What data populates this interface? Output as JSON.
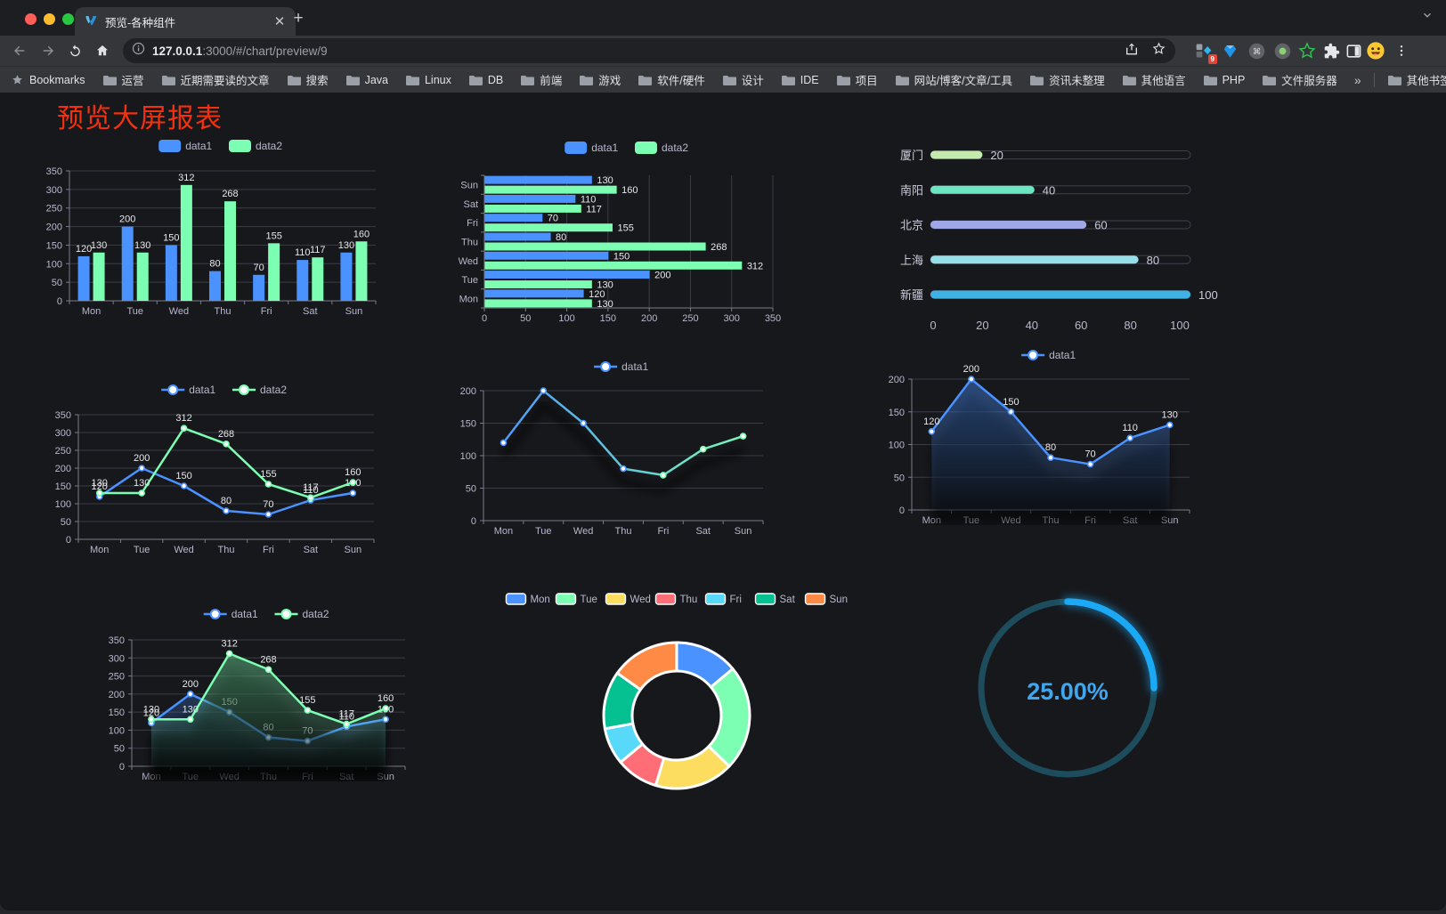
{
  "browser": {
    "tab_title": "预览-各种组件",
    "url_host": "127.0.0.1",
    "url_rest": ":3000/#/chart/preview/9",
    "bookmarks_label": "Bookmarks",
    "bookmarks": [
      "运营",
      "近期需要读的文章",
      "搜索",
      "Java",
      "Linux",
      "DB",
      "前端",
      "游戏",
      "软件/硬件",
      "设计",
      "IDE",
      "项目",
      "网站/博客/文章/工具",
      "资讯未整理",
      "其他语言",
      "PHP",
      "文件服务器"
    ],
    "bookmarks_overflow": "»",
    "other_bookmarks": "其他书签",
    "extension_badge": "9"
  },
  "page": {
    "title": "预览大屏报表",
    "title_color": "#f3310e"
  },
  "theme": {
    "background": "#17181c",
    "axis_label": "#b9b8ce",
    "axis_line": "#787b88",
    "grid_line": "#3b3c46",
    "value_label": "#e8e8ea",
    "legend_text": "#b9b8ce",
    "series_blue": "#4992ff",
    "series_green": "#7cffb2"
  },
  "chart_data": [
    {
      "id": "grouped-bar-vertical",
      "type": "bar",
      "categories": [
        "Mon",
        "Tue",
        "Wed",
        "Thu",
        "Fri",
        "Sat",
        "Sun"
      ],
      "series": [
        {
          "name": "data1",
          "color": "#4992ff",
          "values": [
            120,
            200,
            150,
            80,
            70,
            110,
            130
          ]
        },
        {
          "name": "data2",
          "color": "#7cffb2",
          "values": [
            130,
            130,
            312,
            268,
            155,
            117,
            160
          ]
        }
      ],
      "ylim": [
        0,
        350
      ],
      "yticks": [
        0,
        50,
        100,
        150,
        200,
        250,
        300,
        350
      ],
      "legend_position": "top",
      "grid": true,
      "labels": true
    },
    {
      "id": "grouped-bar-horizontal",
      "type": "bar-horizontal",
      "categories": [
        "Mon",
        "Tue",
        "Wed",
        "Thu",
        "Fri",
        "Sat",
        "Sun"
      ],
      "series": [
        {
          "name": "data1",
          "color": "#4992ff",
          "values": [
            120,
            200,
            150,
            80,
            70,
            110,
            130
          ]
        },
        {
          "name": "data2",
          "color": "#7cffb2",
          "values": [
            130,
            130,
            312,
            268,
            155,
            117,
            160
          ]
        }
      ],
      "xlim": [
        0,
        350
      ],
      "xticks": [
        0,
        50,
        100,
        150,
        200,
        250,
        300,
        350
      ],
      "legend_position": "top",
      "grid": true,
      "labels": true
    },
    {
      "id": "progress-bars",
      "type": "bar-progress",
      "xlim": [
        0,
        100
      ],
      "xticks": [
        0,
        20,
        40,
        60,
        80,
        100
      ],
      "items": [
        {
          "label": "厦门",
          "value": 20,
          "color": "#c4ebad"
        },
        {
          "label": "南阳",
          "value": 40,
          "color": "#6be6c1"
        },
        {
          "label": "北京",
          "value": 60,
          "color": "#a0a7e6"
        },
        {
          "label": "上海",
          "value": 80,
          "color": "#96dee8"
        },
        {
          "label": "新疆",
          "value": 100,
          "color": "#3fb1e3"
        }
      ]
    },
    {
      "id": "line-two-series",
      "type": "line",
      "categories": [
        "Mon",
        "Tue",
        "Wed",
        "Thu",
        "Fri",
        "Sat",
        "Sun"
      ],
      "series": [
        {
          "name": "data1",
          "color": "#4992ff",
          "values": [
            120,
            200,
            150,
            80,
            70,
            110,
            130
          ]
        },
        {
          "name": "data2",
          "color": "#7cffb2",
          "values": [
            130,
            130,
            312,
            268,
            155,
            117,
            160
          ]
        }
      ],
      "ylim": [
        0,
        350
      ],
      "yticks": [
        0,
        50,
        100,
        150,
        200,
        250,
        300,
        350
      ],
      "legend_position": "top",
      "grid": true,
      "labels": true
    },
    {
      "id": "line-gradient",
      "type": "line",
      "categories": [
        "Mon",
        "Tue",
        "Wed",
        "Thu",
        "Fri",
        "Sat",
        "Sun"
      ],
      "series": [
        {
          "name": "data1",
          "gradient": [
            "#4992ff",
            "#7cffb2"
          ],
          "values": [
            120,
            200,
            150,
            80,
            70,
            110,
            130
          ]
        }
      ],
      "ylim": [
        0,
        200
      ],
      "yticks": [
        0,
        50,
        100,
        150,
        200
      ],
      "legend_position": "top",
      "grid": true,
      "labels": false,
      "shadow": true
    },
    {
      "id": "area-single",
      "type": "area",
      "categories": [
        "Mon",
        "Tue",
        "Wed",
        "Thu",
        "Fri",
        "Sat",
        "Sun"
      ],
      "series": [
        {
          "name": "data1",
          "color": "#4992ff",
          "values": [
            120,
            200,
            150,
            80,
            70,
            110,
            130
          ]
        }
      ],
      "ylim": [
        0,
        200
      ],
      "yticks": [
        0,
        50,
        100,
        150,
        200
      ],
      "legend_position": "top",
      "grid": true,
      "labels": true,
      "shadow": true
    },
    {
      "id": "area-two-series",
      "type": "area",
      "categories": [
        "Mon",
        "Tue",
        "Wed",
        "Thu",
        "Fri",
        "Sat",
        "Sun"
      ],
      "series": [
        {
          "name": "data1",
          "color": "#4992ff",
          "values": [
            120,
            200,
            150,
            80,
            70,
            110,
            130
          ]
        },
        {
          "name": "data2",
          "color": "#7cffb2",
          "values": [
            130,
            130,
            312,
            268,
            155,
            117,
            160
          ]
        }
      ],
      "ylim": [
        0,
        350
      ],
      "yticks": [
        0,
        50,
        100,
        150,
        200,
        250,
        300,
        350
      ],
      "legend_position": "top",
      "grid": true,
      "labels": true,
      "shadow": true
    },
    {
      "id": "donut",
      "type": "pie",
      "categories": [
        "Mon",
        "Tue",
        "Wed",
        "Thu",
        "Fri",
        "Sat",
        "Sun"
      ],
      "values": [
        120,
        200,
        150,
        80,
        70,
        110,
        130
      ],
      "colors": [
        "#4992ff",
        "#7cffb2",
        "#fddd60",
        "#ff6e76",
        "#58d9f9",
        "#05c091",
        "#ff8a45"
      ],
      "border_color": "#ffffff",
      "legend_position": "top"
    },
    {
      "id": "gauge",
      "type": "gauge",
      "percent": 25,
      "value_label": "25.00%",
      "color": "#1ba9f5",
      "track_color": "#1d4c5c",
      "text_color": "#3fa7f0"
    }
  ]
}
